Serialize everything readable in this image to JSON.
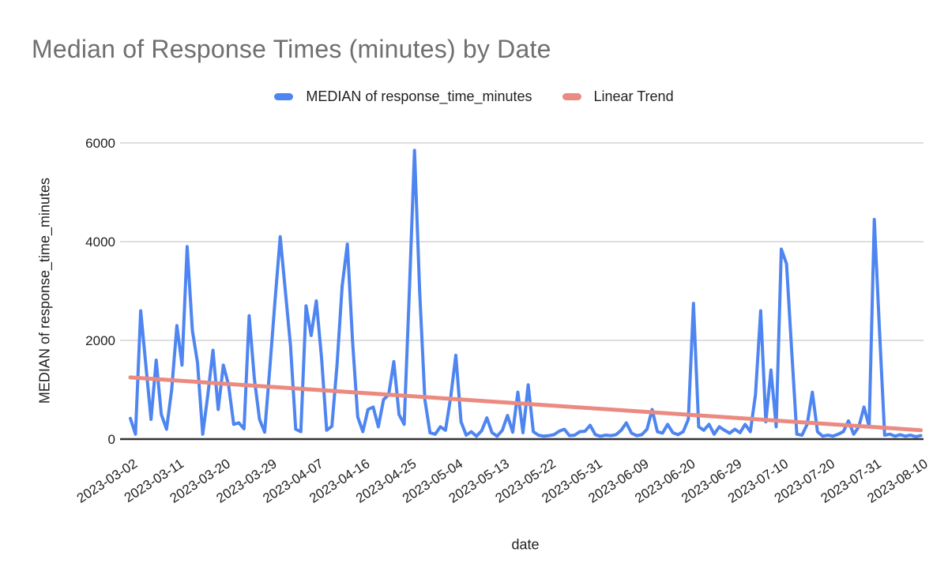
{
  "chart_data": {
    "type": "line",
    "title": "Median of Response Times (minutes) by Date",
    "xlabel": "date",
    "ylabel": "MEDIAN of response_time_minutes",
    "ylim": [
      0,
      6000
    ],
    "y_ticks": [
      0,
      2000,
      4000,
      6000
    ],
    "grid": "horizontal",
    "legend_position": "top",
    "x_tick_every": 9,
    "x_tick_labels": [
      "2023-03-02",
      "2023-03-11",
      "2023-03-20",
      "2023-03-29",
      "2023-04-07",
      "2023-04-16",
      "2023-04-25",
      "2023-05-04",
      "2023-05-13",
      "2023-05-22",
      "2023-05-31",
      "2023-06-09",
      "2023-06-20",
      "2023-06-29",
      "2023-07-10",
      "2023-07-20",
      "2023-07-31",
      "2023-08-10"
    ],
    "series": [
      {
        "name": "MEDIAN of response_time_minutes",
        "color": "#4e85f1",
        "values": [
          420,
          100,
          2600,
          1500,
          400,
          1600,
          500,
          200,
          1000,
          2300,
          1500,
          3900,
          2200,
          1550,
          100,
          900,
          1800,
          600,
          1500,
          1100,
          300,
          330,
          210,
          2500,
          1220,
          400,
          140,
          1450,
          2800,
          4100,
          3000,
          1900,
          200,
          150,
          2700,
          2100,
          2800,
          1650,
          180,
          260,
          1500,
          3100,
          3950,
          2000,
          450,
          150,
          600,
          650,
          250,
          800,
          900,
          1570,
          500,
          300,
          3000,
          5850,
          3000,
          800,
          130,
          100,
          250,
          180,
          850,
          1700,
          350,
          80,
          150,
          60,
          170,
          430,
          130,
          60,
          180,
          480,
          140,
          950,
          130,
          1100,
          150,
          80,
          60,
          70,
          90,
          160,
          200,
          70,
          80,
          150,
          160,
          280,
          90,
          60,
          80,
          70,
          90,
          180,
          330,
          120,
          70,
          90,
          200,
          600,
          150,
          120,
          300,
          130,
          90,
          150,
          400,
          2750,
          250,
          180,
          300,
          100,
          250,
          180,
          120,
          200,
          130,
          300,
          150,
          900,
          2600,
          350,
          1400,
          250,
          3850,
          3550,
          1800,
          100,
          80,
          300,
          950,
          150,
          60,
          80,
          60,
          100,
          150,
          370,
          100,
          250,
          650,
          250,
          4450,
          2200,
          80,
          100,
          60,
          90,
          60,
          80,
          50,
          70
        ]
      },
      {
        "name": "Linear Trend",
        "color": "#ea8a80",
        "trend_start": 1250,
        "trend_end": 180
      }
    ],
    "colors": {
      "title_text": "#6f6f6f",
      "axis_text": "#1f1f1f",
      "gridline": "#dadada",
      "baseline": "#333333"
    }
  }
}
